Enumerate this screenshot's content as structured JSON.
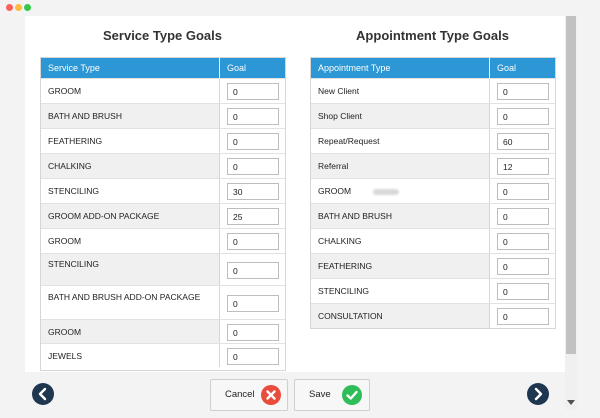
{
  "service_section": {
    "title": "Service Type Goals",
    "col_type": "Service Type",
    "col_goal": "Goal",
    "rows": [
      {
        "type": "GROOM",
        "goal": "0"
      },
      {
        "type": "BATH AND BRUSH",
        "goal": "0"
      },
      {
        "type": "FEATHERING",
        "goal": "0"
      },
      {
        "type": "CHALKING",
        "goal": "0"
      },
      {
        "type": "STENCILING",
        "goal": "30"
      },
      {
        "type": "GROOM ADD-ON PACKAGE",
        "goal": "25"
      },
      {
        "type": "GROOM",
        "goal": "0"
      },
      {
        "type": "STENCILING",
        "goal": "0"
      },
      {
        "type": "BATH AND BRUSH ADD-ON PACKAGE",
        "goal": "0"
      },
      {
        "type": "GROOM",
        "goal": "0"
      },
      {
        "type": "JEWELS",
        "goal": "0"
      }
    ]
  },
  "appointment_section": {
    "title": "Appointment Type Goals",
    "col_type": "Appointment Type",
    "col_goal": "Goal",
    "rows": [
      {
        "type": "New Client",
        "goal": "0"
      },
      {
        "type": "Shop Client",
        "goal": "0"
      },
      {
        "type": "Repeat/Request",
        "goal": "60"
      },
      {
        "type": "Referral",
        "goal": "12"
      },
      {
        "type": "GROOM",
        "goal": "0"
      },
      {
        "type": "BATH AND BRUSH",
        "goal": "0"
      },
      {
        "type": "CHALKING",
        "goal": "0"
      },
      {
        "type": "FEATHERING",
        "goal": "0"
      },
      {
        "type": "STENCILING",
        "goal": "0"
      },
      {
        "type": "CONSULTATION",
        "goal": "0"
      }
    ]
  },
  "footer": {
    "cancel_label": "Cancel",
    "save_label": "Save",
    "prev_icon": "chevron-left-icon",
    "next_icon": "chevron-right-icon"
  },
  "colors": {
    "header_blue": "#2c97d4",
    "nav_dark": "#1f3650",
    "cancel_red": "#e84c3d",
    "save_green": "#2ebd59"
  }
}
